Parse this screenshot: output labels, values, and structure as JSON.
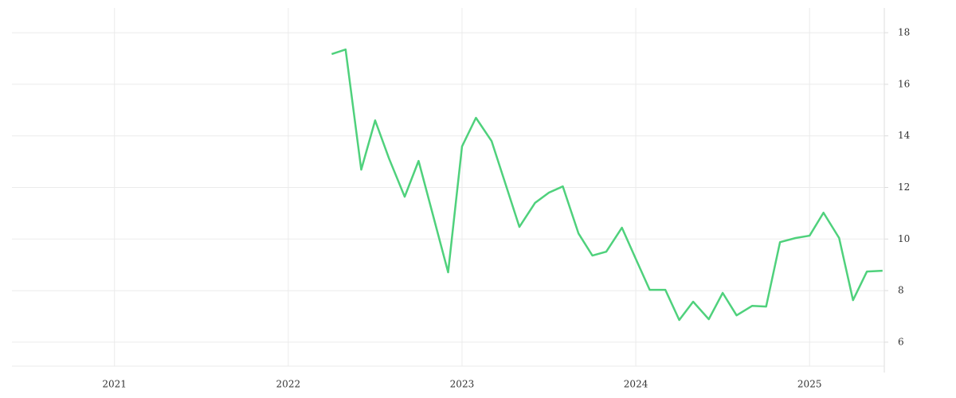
{
  "chart_data": {
    "type": "line",
    "x": [
      2022.25,
      2022.33,
      2022.42,
      2022.5,
      2022.58,
      2022.67,
      2022.75,
      2022.83,
      2022.92,
      2023.0,
      2023.08,
      2023.17,
      2023.25,
      2023.33,
      2023.42,
      2023.5,
      2023.58,
      2023.67,
      2023.75,
      2023.83,
      2023.92,
      2024.0,
      2024.08,
      2024.17,
      2024.25,
      2024.33,
      2024.42,
      2024.5,
      2024.58,
      2024.67,
      2024.75,
      2024.83,
      2024.92,
      2025.0,
      2025.08,
      2025.17,
      2025.25,
      2025.33,
      2025.42
    ],
    "values": [
      17.17,
      17.35,
      12.69,
      14.6,
      13.12,
      11.64,
      13.03,
      11.0,
      8.71,
      13.59,
      14.7,
      13.8,
      12.14,
      10.47,
      11.4,
      11.8,
      12.04,
      10.22,
      9.36,
      9.51,
      10.44,
      9.23,
      8.03,
      8.03,
      6.86,
      7.57,
      6.89,
      7.91,
      7.04,
      7.41,
      7.38,
      9.88,
      10.04,
      10.13,
      11.02,
      10.04,
      7.63,
      8.74,
      8.77
    ],
    "color": "#4fd17c",
    "xlim": [
      2020.41,
      2025.43
    ],
    "xticks": [
      2021,
      2022,
      2023,
      2024,
      2025
    ],
    "ylim": [
      5.07,
      18.96
    ],
    "yticks": [
      6,
      8,
      10,
      12,
      14,
      16,
      18
    ],
    "grid": true
  }
}
